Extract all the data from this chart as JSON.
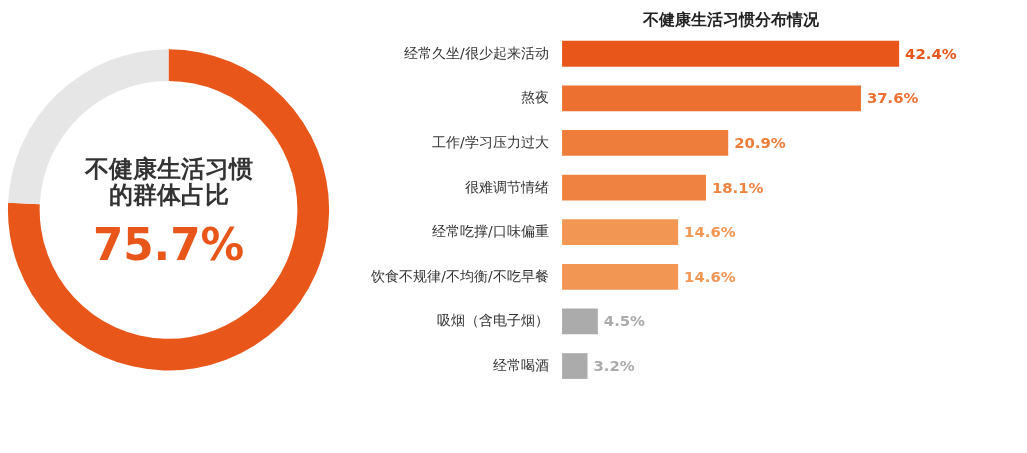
{
  "chart_data": [
    {
      "type": "donut",
      "title": "不健康生活习惯的群体占比",
      "categories": [
        null,
        null
      ],
      "values": [
        75.7,
        24.3
      ],
      "colors": [
        "#e8561a",
        "#e6e6e6"
      ],
      "value_labels": [
        "75.7%",
        null
      ],
      "legend": false
    },
    {
      "type": "bar",
      "orientation": "horizontal",
      "title": "不健康生活习惯分布情况",
      "categories": [
        "经常久坐/很少起来活动",
        "熬夜",
        "工作/学习压力过大",
        "很难调节情绪",
        "经常吃撑/口味偏重",
        "饮食不规律/不均衡/不吃早餐",
        "吸烟（含电子烟）",
        "经常喝酒"
      ],
      "values": [
        42.4,
        37.6,
        20.9,
        18.1,
        14.6,
        14.6,
        4.5,
        3.2
      ],
      "colors": [
        "#e8561a",
        "#ec7030",
        "#ee7c3a",
        "#ef8240",
        "#f29654",
        "#f29654",
        "#ababab",
        "#ababab"
      ],
      "value_labels": [
        "42.4%",
        "37.6%",
        "20.9%",
        "18.1%",
        "14.6%",
        "14.6%",
        "4.5%",
        "3.2%"
      ],
      "legend": false
    }
  ]
}
